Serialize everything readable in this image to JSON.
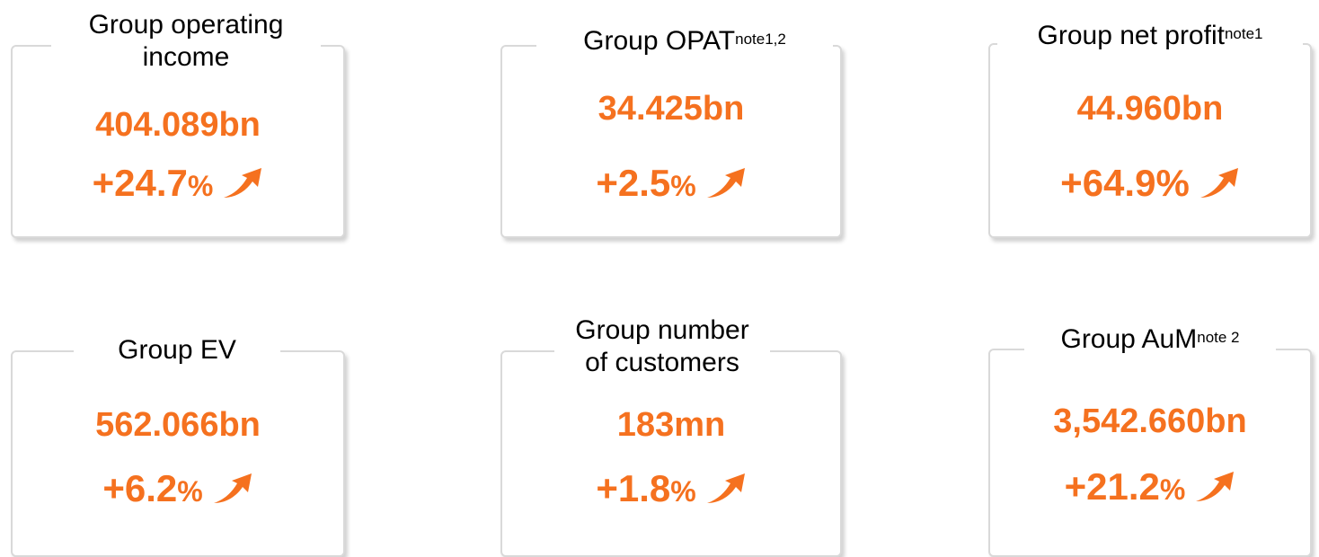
{
  "cards": [
    {
      "title": "Group operating income",
      "value": "404.089bn",
      "change": "+24.7",
      "unit": "%"
    },
    {
      "title": "Group OPAT",
      "note": "note1,2",
      "value": "34.425bn",
      "change": "+2.5",
      "unit": "%"
    },
    {
      "title": "Group net profit",
      "note": "note1",
      "value": "44.960bn",
      "change": "+64.9",
      "unit": "%"
    },
    {
      "title": "Group EV",
      "value": "562.066bn",
      "change": "+6.2",
      "unit": "%"
    },
    {
      "title": "Group number of customers",
      "value": "183mn",
      "change": "+1.8",
      "unit": "%"
    },
    {
      "title": "Group AuM",
      "note": "note 2",
      "value": "3,542.660bn",
      "change": "+21.2",
      "unit": "%"
    }
  ]
}
